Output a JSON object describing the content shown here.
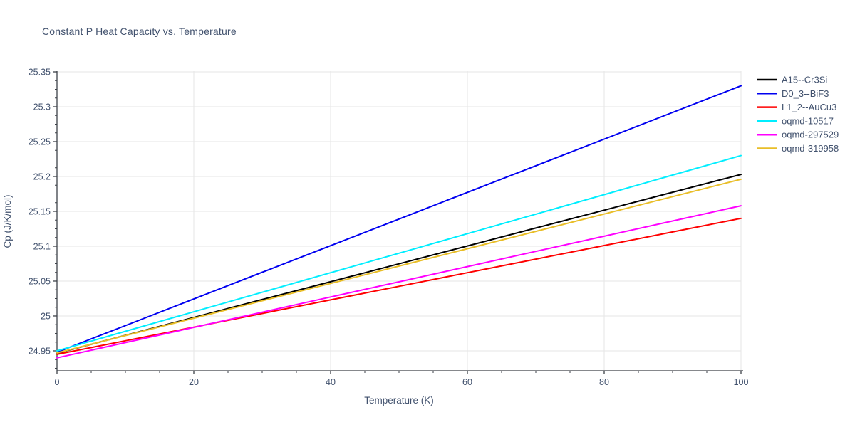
{
  "title": "Constant P Heat Capacity vs. Temperature",
  "colors": {
    "text": "#42526E",
    "axis": "#3d4148",
    "grid": "#e6e6e6",
    "background": "#ffffff"
  },
  "chart_data": {
    "type": "line",
    "title": "Constant P Heat Capacity vs. Temperature",
    "xlabel": "Temperature (K)",
    "ylabel": "Cp (J/K/mol)",
    "xlim": [
      0,
      100
    ],
    "ylim": [
      24.9214,
      25.35
    ],
    "x_ticks": [
      0,
      20,
      40,
      60,
      80,
      100
    ],
    "y_ticks": [
      24.95,
      25,
      25.05,
      25.1,
      25.15,
      25.2,
      25.25,
      25.3,
      25.35
    ],
    "x_minor_step": 5,
    "y_minor_step": 0.0125,
    "grid": "major-both",
    "legend_position": "right-outside",
    "x": [
      0,
      10,
      20,
      30,
      40,
      50,
      60,
      70,
      80,
      90,
      100
    ],
    "series": [
      {
        "name": "A15--Cr3Si",
        "color": "#000000",
        "values": [
          24.9465,
          24.9722,
          24.9978,
          25.0235,
          25.0491,
          25.0748,
          25.1004,
          25.1261,
          25.1517,
          25.1774,
          25.203
        ]
      },
      {
        "name": "D0_3--BiF3",
        "color": "#0000f0",
        "values": [
          24.948,
          24.9862,
          25.0244,
          25.0626,
          25.1008,
          25.139,
          25.1772,
          25.2154,
          25.2536,
          25.2918,
          25.33
        ]
      },
      {
        "name": "L1_2--AuCu3",
        "color": "#ff0000",
        "values": [
          24.945,
          24.9645,
          24.984,
          25.0035,
          25.023,
          25.0425,
          25.062,
          25.0815,
          25.101,
          25.1205,
          25.14
        ]
      },
      {
        "name": "oqmd-10517",
        "color": "#00eeff",
        "values": [
          24.95,
          24.978,
          25.006,
          25.034,
          25.062,
          25.09,
          25.118,
          25.146,
          25.174,
          25.202,
          25.23
        ]
      },
      {
        "name": "oqmd-297529",
        "color": "#ff00ff",
        "values": [
          24.94,
          24.9618,
          24.9836,
          25.0054,
          25.0272,
          25.049,
          25.0708,
          25.0926,
          25.1144,
          25.1362,
          25.158
        ]
      },
      {
        "name": "oqmd-319958",
        "color": "#e9be28",
        "values": [
          24.947,
          24.9719,
          24.9968,
          25.0217,
          25.0466,
          25.0715,
          25.0964,
          25.1213,
          25.1462,
          25.1711,
          25.196
        ]
      }
    ]
  }
}
